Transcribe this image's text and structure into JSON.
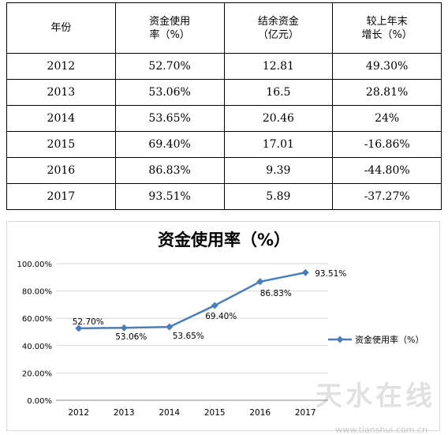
{
  "table": {
    "headers": [
      "年份",
      "资金使用\n率（%）",
      "结余资金\n（亿元）",
      "较上年末\n增长（%）"
    ],
    "rows": [
      [
        "2012",
        "52.70%",
        "12.81",
        "49.30%"
      ],
      [
        "2013",
        "53.06%",
        "16.5",
        "28.81%"
      ],
      [
        "2014",
        "53.65%",
        "20.46",
        "24%"
      ],
      [
        "2015",
        "69.40%",
        "17.01",
        "-16.86%"
      ],
      [
        "2016",
        "86.83%",
        "9.39",
        "-44.80%"
      ],
      [
        "2017",
        "93.51%",
        "5.89",
        "-37.27%"
      ]
    ]
  },
  "chart_data": {
    "type": "line",
    "title": "资金使用率（%）",
    "categories": [
      "2012",
      "2013",
      "2014",
      "2015",
      "2016",
      "2017"
    ],
    "series": [
      {
        "name": "资金使用率（%）",
        "values": [
          52.7,
          53.06,
          53.65,
          69.4,
          86.83,
          93.51
        ],
        "labels": [
          "52.70%",
          "53.06%",
          "53.65%",
          "69.40%",
          "86.83%",
          "93.51%"
        ],
        "color": "#4a7ebb",
        "marker": "diamond"
      }
    ],
    "ylim": [
      0,
      100
    ],
    "yticks": [
      "0.00%",
      "20.00%",
      "40.00%",
      "60.00%",
      "80.00%",
      "100.00%"
    ],
    "grid": true,
    "legend": "right"
  },
  "watermark": {
    "text": "天水在线",
    "url": "www.tianshui.com.cn"
  }
}
